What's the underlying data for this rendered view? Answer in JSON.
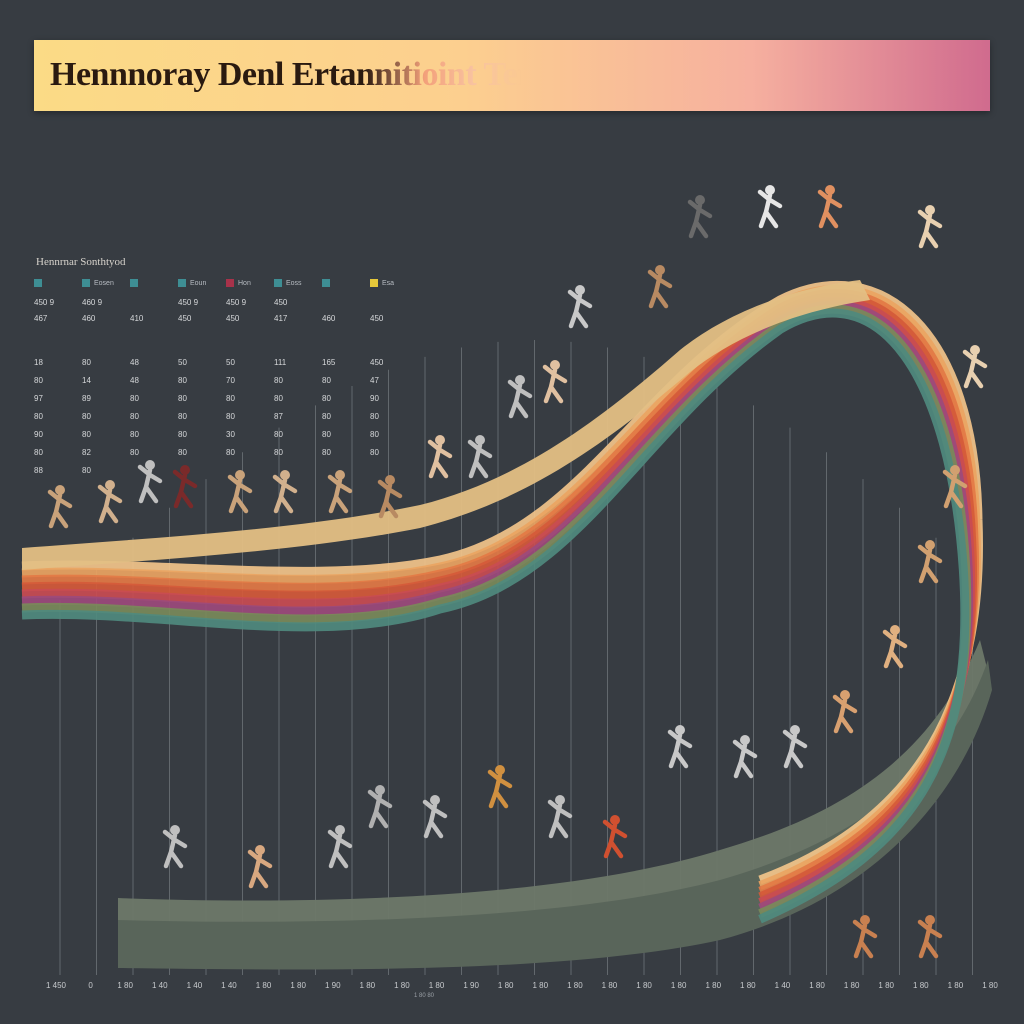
{
  "title": "Hennnoray Denl Ertannitioint Tentarltinsy",
  "legend": {
    "title": "Hennrnar Sonthtyod"
  },
  "table": {
    "columns": [
      {
        "header": "",
        "color": "#3e8e94"
      },
      {
        "header": "Eosen",
        "color": "#3e8e94"
      },
      {
        "header": "",
        "color": "#3e8e94"
      },
      {
        "header": "Eoun",
        "color": "#3e8e94"
      },
      {
        "header": "Hon",
        "color": "#a8324a"
      },
      {
        "header": "Eoss",
        "color": "#3e8e94"
      },
      {
        "header": "",
        "color": "#3e8e94"
      },
      {
        "header": "Esa",
        "color": "#e6c83a"
      }
    ],
    "rows": [
      [
        "450 9",
        "460 9",
        "",
        "450 9",
        "450 9",
        "450",
        "",
        ""
      ],
      [
        "467",
        "460",
        "410",
        "450",
        "450",
        "417",
        "460",
        "450"
      ],
      [
        "",
        "",
        "",
        "",
        "",
        "",
        "",
        ""
      ],
      [
        "18",
        "80",
        "48",
        "50",
        "50",
        "111",
        "165",
        "450"
      ],
      [
        "80",
        "14",
        "48",
        "80",
        "70",
        "80",
        "80",
        "47"
      ],
      [
        "97",
        "89",
        "80",
        "80",
        "80",
        "80",
        "80",
        "90"
      ],
      [
        "80",
        "80",
        "80",
        "80",
        "80",
        "87",
        "80",
        "80"
      ],
      [
        "90",
        "80",
        "80",
        "80",
        "30",
        "80",
        "80",
        "80"
      ],
      [
        "80",
        "82",
        "80",
        "80",
        "80",
        "80",
        "80",
        "80"
      ],
      [
        "88",
        "80",
        "",
        "",
        "",
        "",
        "",
        ""
      ]
    ]
  },
  "xaxis": {
    "ticks": [
      "1 450",
      "0",
      "1 80",
      "1 40",
      "1 40",
      "1 40",
      "1 80",
      "1 80",
      "1 90",
      "1 80",
      "1 80",
      "1 80",
      "1 90",
      "1 80",
      "1 80",
      "1 80",
      "1 80",
      "1 80",
      "1 80",
      "1 80",
      "1 80",
      "1 40",
      "1 80",
      "1 80",
      "1 80",
      "1 80",
      "1 80",
      "1 80"
    ],
    "unit": "1 80 80"
  },
  "palette": {
    "background": "#373c42",
    "ribbon": [
      "#f2c48a",
      "#eaa462",
      "#e37a45",
      "#d55a3a",
      "#c94c52",
      "#9c4a7c",
      "#7a8a5a",
      "#4f8a7e"
    ],
    "platform": "#6d7869"
  }
}
